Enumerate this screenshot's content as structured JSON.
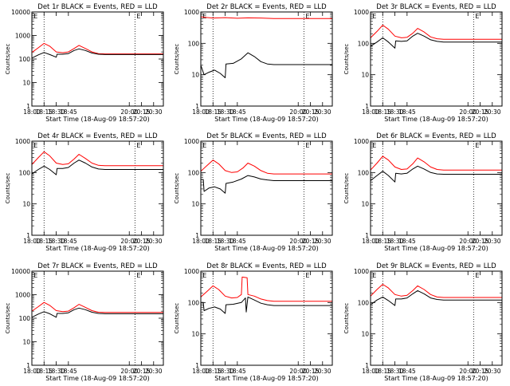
{
  "figure": {
    "colors": {
      "events": "#000000",
      "lld": "#ff0000",
      "axes": "#000000"
    }
  },
  "chart_data": [
    {
      "type": "line",
      "title": "Det 1r BLACK = Events, RED = LLD",
      "xlabel": "Start Time (18-Aug-09 18:57:20)",
      "ylabel": "Counts/sec",
      "yscale": "log",
      "xlim": [
        "18:00",
        "20:42"
      ],
      "ylim": [
        1,
        10000
      ],
      "x_ticks": [
        "18:00",
        "18:15",
        "18:30",
        "18:45",
        "20:00",
        "20:15",
        "20:30"
      ],
      "y_ticks": [
        "1",
        "10",
        "100",
        "1000",
        "10000"
      ],
      "dotted_lines_at": [
        "18:15",
        "20:07"
      ],
      "marker_label": "E",
      "series": [
        {
          "color": "#ff0000",
          "x": [
            "18:00",
            "18:08",
            "18:15",
            "18:22",
            "18:30",
            "18:38",
            "18:45",
            "18:52",
            "18:58",
            "19:06",
            "19:14",
            "19:22",
            "19:30",
            "19:38",
            "20:42"
          ],
          "y": [
            190,
            300,
            460,
            350,
            200,
            185,
            200,
            280,
            380,
            280,
            200,
            170,
            165,
            165,
            165
          ]
        },
        {
          "color": "#000000",
          "x": [
            "18:00",
            "18:08",
            "18:15",
            "18:22",
            "18:30",
            "18:31",
            "18:38",
            "18:45",
            "18:52",
            "18:58",
            "19:06",
            "19:14",
            "19:22",
            "19:30",
            "19:38",
            "20:42"
          ],
          "y": [
            110,
            150,
            190,
            155,
            120,
            160,
            160,
            170,
            230,
            270,
            230,
            180,
            160,
            155,
            155,
            155
          ]
        }
      ]
    },
    {
      "type": "line",
      "title": "Det 2r BLACK = Events, RED = LLD",
      "xlabel": "Start Time (18-Aug-09 18:57:20)",
      "ylabel": "Counts/sec",
      "yscale": "log",
      "xlim": [
        "18:00",
        "20:42"
      ],
      "ylim": [
        1,
        1000
      ],
      "x_ticks": [
        "18:00",
        "18:15",
        "18:30",
        "18:45",
        "20:00",
        "20:15",
        "20:30"
      ],
      "y_ticks": [
        "1",
        "10",
        "100",
        "1000"
      ],
      "dotted_lines_at": [
        "18:15",
        "20:07"
      ],
      "marker_label": "E",
      "series": [
        {
          "color": "#ff0000",
          "x": [
            "18:00",
            "18:15",
            "18:30",
            "18:45",
            "18:58",
            "19:14",
            "19:30",
            "20:42"
          ],
          "y": [
            690,
            640,
            660,
            630,
            650,
            640,
            620,
            620
          ]
        },
        {
          "color": "#000000",
          "x": [
            "18:00",
            "18:04",
            "18:10",
            "18:17",
            "18:24",
            "18:30",
            "18:31",
            "18:40",
            "18:50",
            "18:58",
            "19:06",
            "19:14",
            "19:22",
            "19:30",
            "20:42"
          ],
          "y": [
            20,
            10,
            12,
            14,
            11,
            8,
            22,
            23,
            32,
            50,
            38,
            26,
            22,
            21,
            21
          ]
        }
      ]
    },
    {
      "type": "line",
      "title": "Det 3r BLACK = Events, RED = LLD",
      "xlabel": "Start Time (18-Aug-09 18:57:20)",
      "ylabel": "Counts/sec",
      "yscale": "log",
      "xlim": [
        "18:00",
        "20:42"
      ],
      "ylim": [
        1,
        1000
      ],
      "x_ticks": [
        "18:00",
        "18:15",
        "18:30",
        "18:45",
        "20:00",
        "20:15",
        "20:30"
      ],
      "y_ticks": [
        "1",
        "10",
        "100",
        "1000"
      ],
      "dotted_lines_at": [
        "18:15",
        "20:07"
      ],
      "marker_label": "E",
      "series": [
        {
          "color": "#ff0000",
          "x": [
            "18:00",
            "18:08",
            "18:15",
            "18:22",
            "18:30",
            "18:38",
            "18:45",
            "18:52",
            "18:58",
            "19:06",
            "19:14",
            "19:22",
            "19:30",
            "19:38",
            "20:42"
          ],
          "y": [
            150,
            240,
            380,
            280,
            170,
            150,
            155,
            210,
            300,
            230,
            160,
            140,
            135,
            135,
            135
          ]
        },
        {
          "color": "#000000",
          "x": [
            "18:00",
            "18:08",
            "18:15",
            "18:22",
            "18:30",
            "18:31",
            "18:38",
            "18:45",
            "18:52",
            "18:58",
            "19:06",
            "19:14",
            "19:22",
            "19:30",
            "19:38",
            "20:42"
          ],
          "y": [
            80,
            110,
            150,
            110,
            70,
            120,
            115,
            120,
            170,
            210,
            170,
            130,
            115,
            110,
            110,
            110
          ]
        }
      ]
    },
    {
      "type": "line",
      "title": "Det 4r BLACK = Events, RED = LLD",
      "xlabel": "Start Time (18-Aug-09 18:57:20)",
      "ylabel": "Counts/sec",
      "yscale": "log",
      "xlim": [
        "18:00",
        "20:42"
      ],
      "ylim": [
        1,
        1000
      ],
      "x_ticks": [
        "18:00",
        "18:15",
        "18:30",
        "18:45",
        "20:00",
        "20:15",
        "20:30"
      ],
      "y_ticks": [
        "1",
        "10",
        "100",
        "1000"
      ],
      "dotted_lines_at": [
        "18:15",
        "20:07"
      ],
      "marker_label": "E",
      "series": [
        {
          "color": "#ff0000",
          "x": [
            "18:00",
            "18:08",
            "18:15",
            "18:22",
            "18:30",
            "18:38",
            "18:45",
            "18:52",
            "18:58",
            "19:06",
            "19:14",
            "19:22",
            "19:30",
            "19:38",
            "20:42"
          ],
          "y": [
            180,
            300,
            460,
            340,
            200,
            180,
            190,
            270,
            380,
            280,
            200,
            170,
            165,
            165,
            165
          ]
        },
        {
          "color": "#000000",
          "x": [
            "18:00",
            "18:08",
            "18:15",
            "18:22",
            "18:30",
            "18:31",
            "18:38",
            "18:45",
            "18:52",
            "18:58",
            "19:06",
            "19:14",
            "19:22",
            "19:30",
            "19:38",
            "20:42"
          ],
          "y": [
            90,
            125,
            160,
            125,
            85,
            135,
            135,
            145,
            200,
            250,
            200,
            150,
            130,
            125,
            125,
            125
          ]
        }
      ]
    },
    {
      "type": "line",
      "title": "Det 5r BLACK = Events, RED = LLD",
      "xlabel": "Start Time (18-Aug-09 18:57:20)",
      "ylabel": "Counts/sec",
      "yscale": "log",
      "xlim": [
        "18:00",
        "20:42"
      ],
      "ylim": [
        1,
        1000
      ],
      "x_ticks": [
        "18:00",
        "18:15",
        "18:30",
        "18:45",
        "20:00",
        "20:15",
        "20:30"
      ],
      "y_ticks": [
        "1",
        "10",
        "100",
        "1000"
      ],
      "dotted_lines_at": [
        "18:15",
        "20:07"
      ],
      "marker_label": "E",
      "series": [
        {
          "color": "#ff0000",
          "x": [
            "18:00",
            "18:08",
            "18:15",
            "18:22",
            "18:30",
            "18:38",
            "18:45",
            "18:52",
            "18:58",
            "19:06",
            "19:14",
            "19:22",
            "19:30",
            "19:38",
            "20:42"
          ],
          "y": [
            110,
            170,
            250,
            190,
            115,
            100,
            105,
            140,
            200,
            160,
            115,
            95,
            90,
            90,
            90
          ]
        },
        {
          "color": "#000000",
          "x": [
            "18:00",
            "18:03",
            "18:04",
            "18:10",
            "18:17",
            "18:24",
            "18:30",
            "18:31",
            "18:40",
            "18:50",
            "18:58",
            "19:06",
            "19:14",
            "19:22",
            "19:30",
            "20:42"
          ],
          "y": [
            60,
            60,
            25,
            32,
            35,
            30,
            22,
            45,
            50,
            62,
            80,
            72,
            62,
            58,
            55,
            55
          ]
        }
      ]
    },
    {
      "type": "line",
      "title": "Det 6r BLACK = Events, RED = LLD",
      "xlabel": "Start Time (18-Aug-09 18:57:20)",
      "ylabel": "Counts/sec",
      "yscale": "log",
      "xlim": [
        "18:00",
        "20:42"
      ],
      "ylim": [
        1,
        1000
      ],
      "x_ticks": [
        "18:00",
        "18:15",
        "18:30",
        "18:45",
        "20:00",
        "20:15",
        "20:30"
      ],
      "y_ticks": [
        "1",
        "10",
        "100",
        "1000"
      ],
      "dotted_lines_at": [
        "18:15",
        "20:07"
      ],
      "marker_label": "E",
      "series": [
        {
          "color": "#ff0000",
          "x": [
            "18:00",
            "18:08",
            "18:15",
            "18:22",
            "18:30",
            "18:38",
            "18:45",
            "18:52",
            "18:58",
            "19:06",
            "19:14",
            "19:22",
            "19:30",
            "19:38",
            "20:42"
          ],
          "y": [
            120,
            200,
            330,
            250,
            150,
            125,
            130,
            190,
            290,
            220,
            150,
            125,
            120,
            120,
            120
          ]
        },
        {
          "color": "#000000",
          "x": [
            "18:00",
            "18:08",
            "18:15",
            "18:22",
            "18:30",
            "18:31",
            "18:38",
            "18:45",
            "18:52",
            "18:58",
            "19:06",
            "19:14",
            "19:22",
            "19:30",
            "19:38",
            "20:42"
          ],
          "y": [
            55,
            80,
            110,
            80,
            50,
            95,
            90,
            95,
            130,
            160,
            130,
            100,
            90,
            88,
            88,
            88
          ]
        }
      ]
    },
    {
      "type": "line",
      "title": "Det 7r BLACK = Events, RED = LLD",
      "xlabel": "Start Time (18-Aug-09 18:57:20)",
      "ylabel": "Counts/sec",
      "yscale": "log",
      "xlim": [
        "18:00",
        "20:42"
      ],
      "ylim": [
        1,
        10000
      ],
      "x_ticks": [
        "18:00",
        "18:15",
        "18:30",
        "18:45",
        "20:00",
        "20:15",
        "20:30"
      ],
      "y_ticks": [
        "1",
        "10",
        "100",
        "1000",
        "10000"
      ],
      "dotted_lines_at": [
        "18:15",
        "20:07"
      ],
      "marker_label": "E",
      "series": [
        {
          "color": "#ff0000",
          "x": [
            "18:00",
            "18:08",
            "18:15",
            "18:22",
            "18:30",
            "18:38",
            "18:45",
            "18:52",
            "18:58",
            "19:06",
            "19:14",
            "19:22",
            "19:30",
            "19:38",
            "20:42"
          ],
          "y": [
            200,
            310,
            470,
            350,
            210,
            190,
            200,
            280,
            390,
            290,
            210,
            180,
            175,
            175,
            175
          ]
        },
        {
          "color": "#000000",
          "x": [
            "18:00",
            "18:08",
            "18:15",
            "18:22",
            "18:30",
            "18:31",
            "18:38",
            "18:45",
            "18:52",
            "18:58",
            "19:06",
            "19:14",
            "19:22",
            "19:30",
            "19:38",
            "20:42"
          ],
          "y": [
            110,
            150,
            190,
            155,
            110,
            160,
            160,
            170,
            230,
            270,
            230,
            180,
            160,
            155,
            155,
            155
          ]
        }
      ]
    },
    {
      "type": "line",
      "title": "Det 8r BLACK = Events, RED = LLD",
      "xlabel": "Start Time (18-Aug-09 18:57:20)",
      "ylabel": "Counts/sec",
      "yscale": "log",
      "xlim": [
        "18:00",
        "20:42"
      ],
      "ylim": [
        1,
        1000
      ],
      "x_ticks": [
        "18:00",
        "18:15",
        "18:30",
        "18:45",
        "20:00",
        "20:15",
        "20:30"
      ],
      "y_ticks": [
        "1",
        "10",
        "100",
        "1000"
      ],
      "dotted_lines_at": [
        "18:15",
        "20:07"
      ],
      "marker_label": "E",
      "series": [
        {
          "color": "#ff0000",
          "x": [
            "18:00",
            "18:08",
            "18:15",
            "18:22",
            "18:30",
            "18:38",
            "18:45",
            "18:50",
            "18:51",
            "18:57",
            "18:58",
            "19:06",
            "19:14",
            "19:22",
            "19:30",
            "20:42"
          ],
          "y": [
            150,
            230,
            340,
            260,
            160,
            140,
            145,
            180,
            650,
            620,
            180,
            160,
            130,
            115,
            110,
            110
          ]
        },
        {
          "color": "#000000",
          "x": [
            "18:00",
            "18:03",
            "18:04",
            "18:10",
            "18:17",
            "18:24",
            "18:30",
            "18:31",
            "18:40",
            "18:50",
            "18:55",
            "18:56",
            "18:58",
            "19:06",
            "19:14",
            "19:22",
            "19:30",
            "20:42"
          ],
          "y": [
            100,
            100,
            55,
            65,
            72,
            62,
            45,
            85,
            88,
            100,
            140,
            50,
            150,
            120,
            95,
            85,
            80,
            80
          ]
        }
      ]
    },
    {
      "type": "line",
      "title": "Det 9r BLACK = Events, RED = LLD",
      "xlabel": "Start Time (18-Aug-09 18:57:20)",
      "ylabel": "Counts/sec",
      "yscale": "log",
      "xlim": [
        "18:00",
        "20:42"
      ],
      "ylim": [
        1,
        1000
      ],
      "x_ticks": [
        "18:00",
        "18:15",
        "18:30",
        "18:45",
        "20:00",
        "20:15",
        "20:30"
      ],
      "y_ticks": [
        "1",
        "10",
        "100",
        "1000"
      ],
      "dotted_lines_at": [
        "18:15",
        "20:07"
      ],
      "marker_label": "E",
      "series": [
        {
          "color": "#ff0000",
          "x": [
            "18:00",
            "18:08",
            "18:15",
            "18:22",
            "18:30",
            "18:38",
            "18:45",
            "18:52",
            "18:58",
            "19:06",
            "19:14",
            "19:22",
            "19:30",
            "19:38",
            "20:42"
          ],
          "y": [
            160,
            260,
            380,
            290,
            180,
            160,
            170,
            240,
            340,
            260,
            180,
            150,
            145,
            145,
            145
          ]
        },
        {
          "color": "#000000",
          "x": [
            "18:00",
            "18:08",
            "18:15",
            "18:22",
            "18:30",
            "18:31",
            "18:38",
            "18:45",
            "18:52",
            "18:58",
            "19:06",
            "19:14",
            "19:22",
            "19:30",
            "19:38",
            "20:42"
          ],
          "y": [
            85,
            120,
            150,
            115,
            80,
            130,
            130,
            140,
            190,
            240,
            190,
            140,
            125,
            120,
            120,
            120
          ]
        }
      ]
    }
  ]
}
